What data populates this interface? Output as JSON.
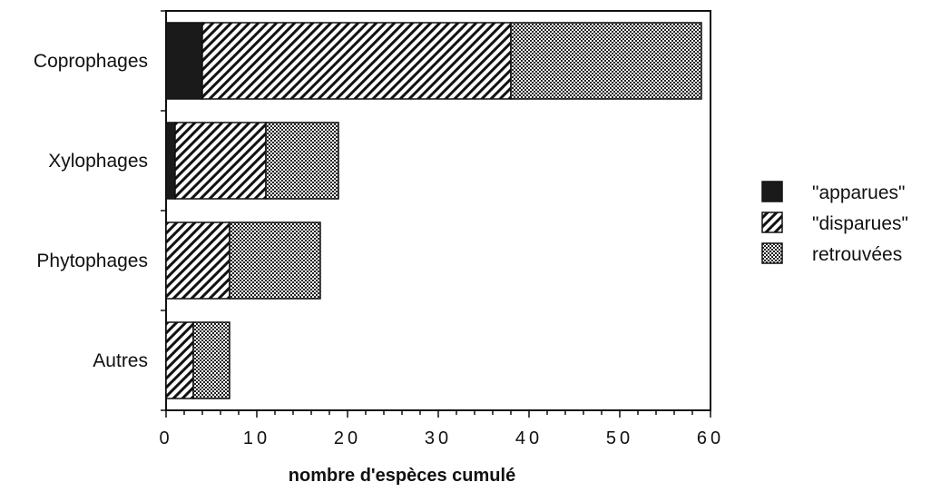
{
  "chart_data": {
    "type": "bar",
    "orientation": "horizontal",
    "stacked": true,
    "categories": [
      "Coprophages",
      "Xylophages",
      "Phytophages",
      "Autres"
    ],
    "series": [
      {
        "name": "\"apparues\"",
        "values": [
          4,
          1,
          0,
          0
        ],
        "pattern": "solid",
        "color": "#1a1a1a"
      },
      {
        "name": "\"disparues\"",
        "values": [
          34,
          10,
          7,
          3
        ],
        "pattern": "diagonal-hatch",
        "color": "#1a1a1a"
      },
      {
        "name": "retrouvées",
        "values": [
          21,
          8,
          10,
          4
        ],
        "pattern": "checkered",
        "color": "#1a1a1a"
      }
    ],
    "xlabel": "nombre d'espèces cumulé",
    "ylabel": "",
    "xlim": [
      0,
      60
    ],
    "xticks": [
      "0",
      "10",
      "20",
      "30",
      "40",
      "50",
      "60"
    ],
    "grid": false,
    "legend_position": "right"
  }
}
